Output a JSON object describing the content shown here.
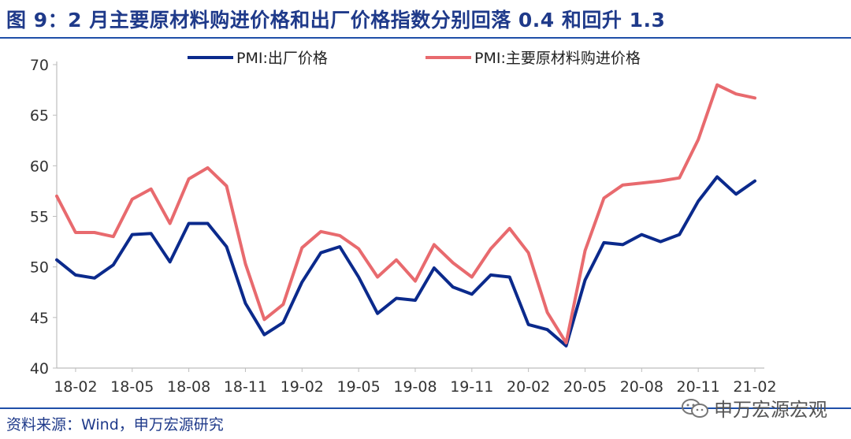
{
  "title": "图 9：2 月主要原材料购进价格和出厂价格指数分别回落 0.4 和回升 1.3",
  "source": "资料来源：Wind，申万宏源研究",
  "watermark": {
    "text": "申万宏源宏观",
    "icon": "wechat-icon"
  },
  "chart_data": {
    "type": "line",
    "ylim": [
      40,
      70
    ],
    "yticks": [
      40,
      45,
      50,
      55,
      60,
      65,
      70
    ],
    "x_tick_labels": [
      "18-02",
      "18-05",
      "18-08",
      "18-11",
      "19-02",
      "19-05",
      "19-08",
      "19-11",
      "20-02",
      "20-05",
      "20-08",
      "20-11",
      "21-02"
    ],
    "legend_position": "top",
    "x": [
      "18-01",
      "18-02",
      "18-03",
      "18-04",
      "18-05",
      "18-06",
      "18-07",
      "18-08",
      "18-09",
      "18-10",
      "18-11",
      "18-12",
      "19-01",
      "19-02",
      "19-03",
      "19-04",
      "19-05",
      "19-06",
      "19-07",
      "19-08",
      "19-09",
      "19-10",
      "19-11",
      "19-12",
      "20-01",
      "20-02",
      "20-03",
      "20-04",
      "20-05",
      "20-06",
      "20-07",
      "20-08",
      "20-09",
      "20-10",
      "20-11",
      "20-12",
      "21-01",
      "21-02"
    ],
    "series": [
      {
        "name": "PMI:出厂价格",
        "color": "#0b2a8c",
        "values": [
          50.7,
          49.2,
          48.9,
          50.2,
          53.2,
          53.3,
          50.5,
          54.3,
          54.3,
          52.0,
          46.4,
          43.3,
          44.5,
          48.5,
          51.4,
          52.0,
          49.0,
          45.4,
          46.9,
          46.7,
          49.9,
          48.0,
          47.3,
          49.2,
          49.0,
          44.3,
          43.8,
          42.2,
          48.7,
          52.4,
          52.2,
          53.2,
          52.5,
          53.2,
          56.5,
          58.9,
          57.2,
          58.5
        ]
      },
      {
        "name": "PMI:主要原材料购进价格",
        "color": "#e86a6e",
        "values": [
          57.0,
          53.4,
          53.4,
          53.0,
          56.7,
          57.7,
          54.3,
          58.7,
          59.8,
          58.0,
          50.3,
          44.8,
          46.3,
          51.9,
          53.5,
          53.1,
          51.8,
          49.0,
          50.7,
          48.6,
          52.2,
          50.4,
          49.0,
          51.8,
          53.8,
          51.4,
          45.5,
          42.5,
          51.6,
          56.8,
          58.1,
          58.3,
          58.5,
          58.8,
          62.6,
          68.0,
          67.1,
          66.7
        ]
      }
    ]
  }
}
